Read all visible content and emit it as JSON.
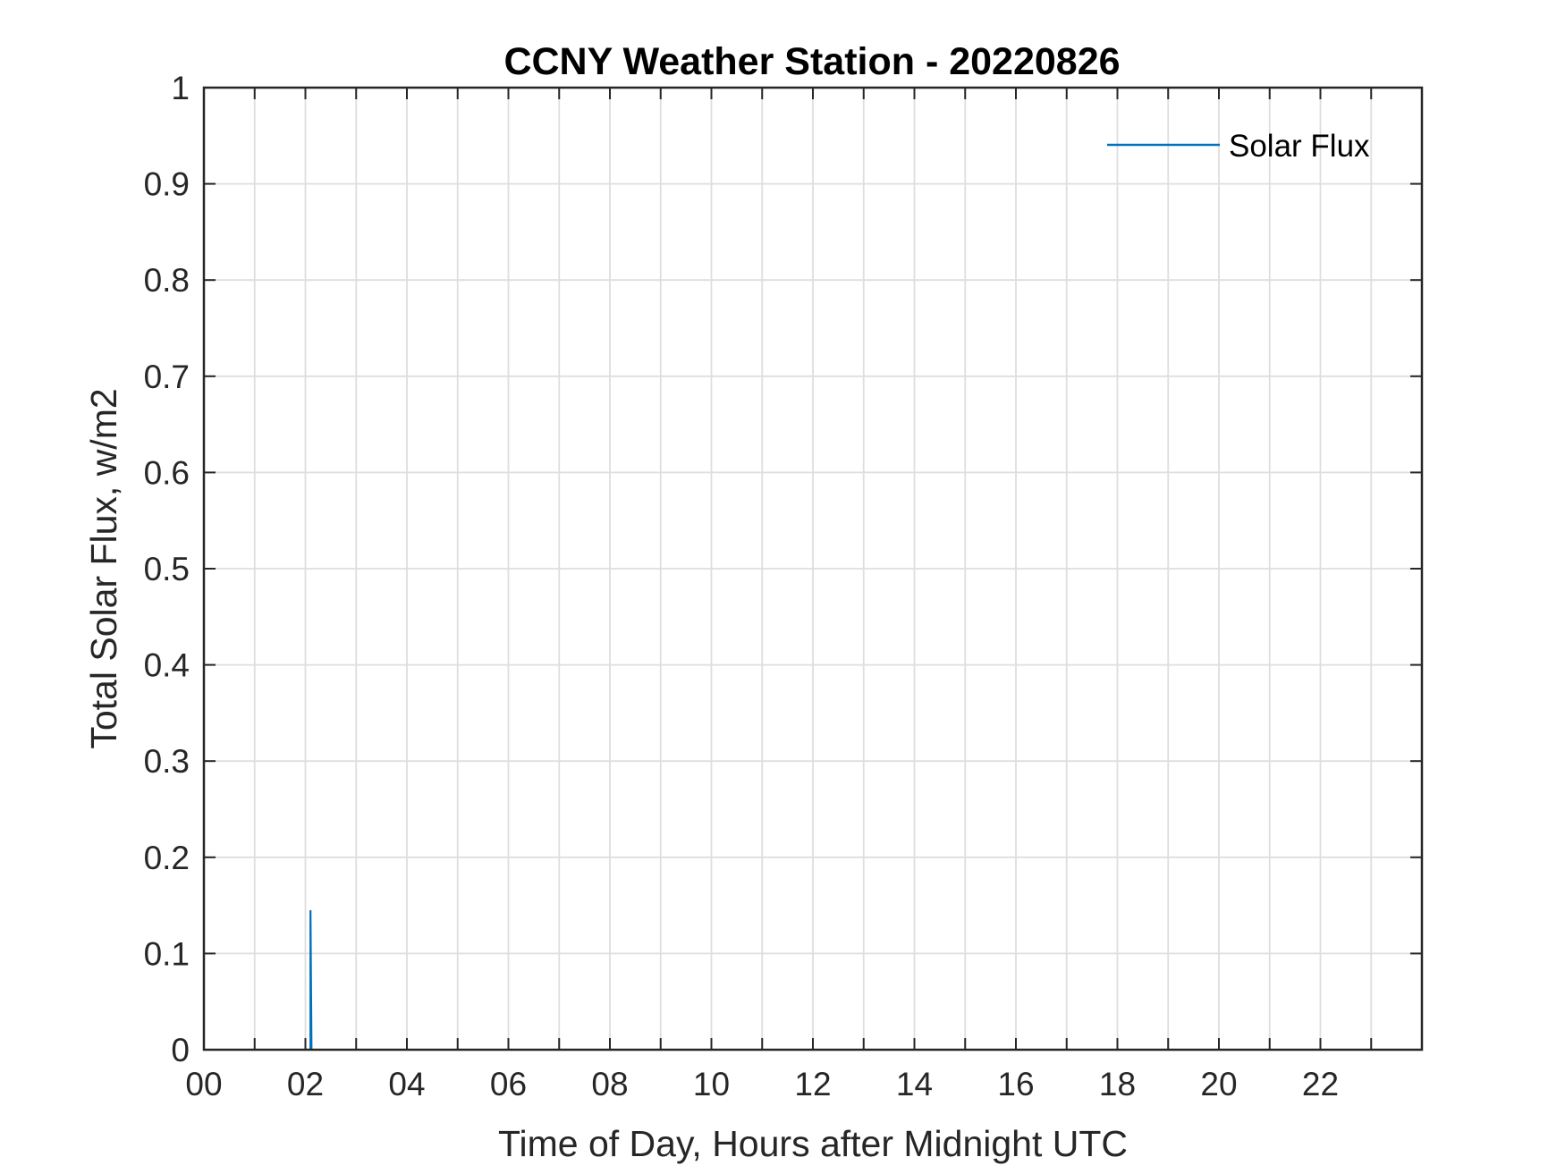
{
  "chart_data": {
    "type": "line",
    "title": "CCNY Weather Station - 20220826",
    "xlabel": "Time of Day, Hours after Midnight UTC",
    "ylabel": "Total Solar Flux, w/m2",
    "xlim": [
      0,
      24
    ],
    "ylim": [
      0,
      1
    ],
    "x_ticks": [
      0,
      2,
      4,
      6,
      8,
      10,
      12,
      14,
      16,
      18,
      20,
      22
    ],
    "x_tick_labels": [
      "00",
      "02",
      "04",
      "06",
      "08",
      "10",
      "12",
      "14",
      "16",
      "18",
      "20",
      "22"
    ],
    "x_minor_grid_step": 1,
    "y_ticks": [
      0,
      0.1,
      0.2,
      0.3,
      0.4,
      0.5,
      0.6,
      0.7,
      0.8,
      0.9,
      1
    ],
    "y_tick_labels": [
      "0",
      "0.1",
      "0.2",
      "0.3",
      "0.4",
      "0.5",
      "0.6",
      "0.7",
      "0.8",
      "0.9",
      "1"
    ],
    "grid": true,
    "legend_position": "top-right",
    "series": [
      {
        "name": "Solar Flux",
        "color": "#0072BD",
        "points": [
          {
            "x": 2.1,
            "y": 0
          },
          {
            "x": 2.1,
            "y": 0.145
          },
          {
            "x": 2.12,
            "y": 0
          }
        ]
      }
    ]
  }
}
